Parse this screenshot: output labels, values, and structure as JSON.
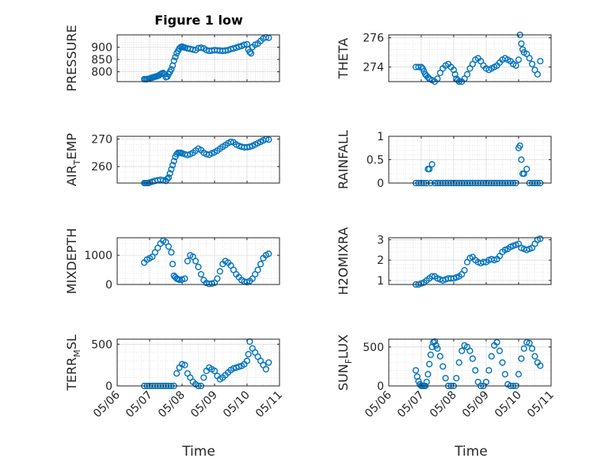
{
  "figure": {
    "title": "Figure 1 low",
    "xlabel": "Time",
    "x_tick_labels": [
      "05/06",
      "05/07",
      "05/08",
      "05/09",
      "05/10",
      "05/11"
    ],
    "marker_color": "#0072BD"
  },
  "chart_data": [
    {
      "type": "scatter",
      "ylabel": "PRESSURE",
      "ylabel_sub": "",
      "ylim": [
        760,
        950
      ],
      "yticks": [
        800,
        850,
        900
      ],
      "grid": true,
      "x": [
        "05/06 20:00",
        "05/06 21:00",
        "05/06 22:00",
        "05/06 23:00",
        "05/07 00:00",
        "05/07 01:00",
        "05/07 02:00",
        "05/07 03:00",
        "05/07 04:00",
        "05/07 05:00",
        "05/07 06:00",
        "05/07 07:00",
        "05/07 08:00",
        "05/07 09:00",
        "05/07 10:00",
        "05/07 11:00",
        "05/07 12:00",
        "05/07 13:00",
        "05/07 14:00",
        "05/07 15:00",
        "05/07 16:00",
        "05/07 17:00",
        "05/07 18:00",
        "05/07 19:00",
        "05/07 20:00",
        "05/07 21:00",
        "05/07 22:00",
        "05/07 23:00",
        "05/08 00:00",
        "05/08 01:00",
        "05/08 02:00",
        "05/08 04:00",
        "05/08 06:00",
        "05/08 08:00",
        "05/08 10:00",
        "05/08 12:00",
        "05/08 14:00",
        "05/08 16:00",
        "05/08 18:00",
        "05/08 20:00",
        "05/08 22:00",
        "05/09 00:00",
        "05/09 02:00",
        "05/09 04:00",
        "05/09 06:00",
        "05/09 08:00",
        "05/09 10:00",
        "05/09 12:00",
        "05/09 14:00",
        "05/09 16:00",
        "05/09 18:00",
        "05/09 20:00",
        "05/09 22:00",
        "05/10 00:00",
        "05/10 01:00",
        "05/10 02:00",
        "05/10 03:00",
        "05/10 04:00",
        "05/10 06:00",
        "05/10 08:00",
        "05/10 10:00",
        "05/10 12:00",
        "05/10 14:00",
        "05/10 16:00"
      ],
      "values": [
        770,
        770,
        770,
        771,
        772,
        775,
        776,
        778,
        780,
        781,
        783,
        786,
        790,
        793,
        795,
        790,
        778,
        780,
        790,
        800,
        810,
        825,
        845,
        860,
        875,
        885,
        895,
        900,
        902,
        900,
        898,
        895,
        893,
        890,
        888,
        896,
        898,
        895,
        888,
        885,
        886,
        888,
        887,
        886,
        885,
        886,
        888,
        892,
        895,
        898,
        902,
        905,
        910,
        912,
        890,
        880,
        875,
        900,
        910,
        915,
        925,
        935,
        940,
        938
      ]
    },
    {
      "type": "scatter",
      "ylabel": "THETA",
      "ylabel_sub": "",
      "ylim": [
        273,
        276.2
      ],
      "yticks": [
        274,
        276
      ],
      "grid": true,
      "x": [
        "05/06 20:00",
        "05/06 22:00",
        "05/07 00:00",
        "05/07 01:00",
        "05/07 02:00",
        "05/07 03:00",
        "05/07 04:00",
        "05/07 05:00",
        "05/07 06:00",
        "05/07 08:00",
        "05/07 10:00",
        "05/07 12:00",
        "05/07 14:00",
        "05/07 16:00",
        "05/07 18:00",
        "05/07 20:00",
        "05/07 22:00",
        "05/08 00:00",
        "05/08 01:00",
        "05/08 02:00",
        "05/08 03:00",
        "05/08 04:00",
        "05/08 06:00",
        "05/08 08:00",
        "05/08 10:00",
        "05/08 12:00",
        "05/08 14:00",
        "05/08 16:00",
        "05/08 18:00",
        "05/08 20:00",
        "05/08 22:00",
        "05/09 00:00",
        "05/09 02:00",
        "05/09 04:00",
        "05/09 06:00",
        "05/09 08:00",
        "05/09 10:00",
        "05/09 12:00",
        "05/09 14:00",
        "05/09 16:00",
        "05/09 18:00",
        "05/09 20:00",
        "05/09 22:00",
        "05/10 00:00",
        "05/10 01:00",
        "05/10 02:00",
        "05/10 03:00",
        "05/10 04:00",
        "05/10 06:00",
        "05/10 08:00",
        "05/10 10:00",
        "05/10 12:00",
        "05/10 14:00",
        "05/10 16:00"
      ],
      "values": [
        274,
        274,
        274,
        273.9,
        273.7,
        273.5,
        273.4,
        273.3,
        273.2,
        273.1,
        273.0,
        273.2,
        273.6,
        273.9,
        274.1,
        274.2,
        274.0,
        273.8,
        273.5,
        273.2,
        273.1,
        273.0,
        273.0,
        273.2,
        273.5,
        273.9,
        274.2,
        274.5,
        274.6,
        274.4,
        274.1,
        273.9,
        273.8,
        273.9,
        274.0,
        274.1,
        274.3,
        274.5,
        274.6,
        274.5,
        274.4,
        274.2,
        274.1,
        274.5,
        276.2,
        275.6,
        275.2,
        275.0,
        274.9,
        274.6,
        274.2,
        273.8,
        273.5,
        274.4
      ]
    },
    {
      "type": "scatter",
      "ylabel": "AIR",
      "ylabel_sub": "T",
      "ylabel_after": "EMP",
      "ylim": [
        254,
        271
      ],
      "yticks": [
        260,
        270
      ],
      "grid": true,
      "x": [
        "05/06 20:00",
        "05/06 21:00",
        "05/06 22:00",
        "05/06 23:00",
        "05/07 00:00",
        "05/07 02:00",
        "05/07 04:00",
        "05/07 06:00",
        "05/07 08:00",
        "05/07 10:00",
        "05/07 12:00",
        "05/07 13:00",
        "05/07 14:00",
        "05/07 15:00",
        "05/07 16:00",
        "05/07 17:00",
        "05/07 18:00",
        "05/07 19:00",
        "05/07 20:00",
        "05/07 21:00",
        "05/07 22:00",
        "05/07 23:00",
        "05/08 00:00",
        "05/08 02:00",
        "05/08 04:00",
        "05/08 06:00",
        "05/08 08:00",
        "05/08 10:00",
        "05/08 12:00",
        "05/08 14:00",
        "05/08 16:00",
        "05/08 18:00",
        "05/08 20:00",
        "05/08 22:00",
        "05/09 00:00",
        "05/09 02:00",
        "05/09 04:00",
        "05/09 06:00",
        "05/09 08:00",
        "05/09 10:00",
        "05/09 12:00",
        "05/09 14:00",
        "05/09 16:00",
        "05/09 18:00",
        "05/09 20:00",
        "05/09 22:00",
        "05/10 00:00",
        "05/10 02:00",
        "05/10 04:00",
        "05/10 06:00",
        "05/10 08:00",
        "05/10 10:00",
        "05/10 12:00",
        "05/10 14:00",
        "05/10 16:00"
      ],
      "values": [
        254,
        254,
        254,
        254,
        254.2,
        254.5,
        254.8,
        255.0,
        255.2,
        255.0,
        254.8,
        255.5,
        256,
        257.5,
        259,
        260.5,
        262,
        263.5,
        264.5,
        265,
        265,
        265,
        264.8,
        264.5,
        264.2,
        264.5,
        265,
        265.8,
        266.5,
        266,
        265,
        264.5,
        264.3,
        264.8,
        265.2,
        265.8,
        266.5,
        267.2,
        267.8,
        268.5,
        269,
        268.8,
        268,
        267.5,
        267.2,
        267.0,
        267.0,
        267.2,
        267.5,
        268,
        268.5,
        269,
        269.5,
        270,
        269.8
      ]
    },
    {
      "type": "scatter",
      "ylabel": "RAINFALL",
      "ylabel_sub": "",
      "ylim": [
        0,
        1
      ],
      "yticks": [
        0,
        0.5,
        1
      ],
      "grid": true,
      "x": [
        "05/06 20:00",
        "05/06 22:00",
        "05/07 00:00",
        "05/07 02:00",
        "05/07 04:00",
        "05/07 05:00",
        "05/07 06:00",
        "05/07 07:00",
        "05/07 08:00",
        "05/07 10:00",
        "05/07 12:00",
        "05/07 14:00",
        "05/07 16:00",
        "05/07 18:00",
        "05/07 20:00",
        "05/07 22:00",
        "05/08 00:00",
        "05/08 02:00",
        "05/08 04:00",
        "05/08 06:00",
        "05/08 08:00",
        "05/08 10:00",
        "05/08 12:00",
        "05/08 14:00",
        "05/08 16:00",
        "05/08 18:00",
        "05/08 20:00",
        "05/08 22:00",
        "05/09 00:00",
        "05/09 02:00",
        "05/09 04:00",
        "05/09 06:00",
        "05/09 08:00",
        "05/09 10:00",
        "05/09 12:00",
        "05/09 14:00",
        "05/09 16:00",
        "05/09 18:00",
        "05/09 20:00",
        "05/09 22:00",
        "05/10 00:00",
        "05/10 01:00",
        "05/10 02:00",
        "05/10 03:00",
        "05/10 04:00",
        "05/10 06:00",
        "05/10 08:00",
        "05/10 10:00",
        "05/10 12:00",
        "05/10 14:00",
        "05/10 16:00"
      ],
      "values": [
        0,
        0,
        0,
        0,
        0,
        0.3,
        0.3,
        0,
        0.4,
        0,
        0,
        0,
        0,
        0,
        0,
        0,
        0,
        0,
        0,
        0,
        0,
        0,
        0,
        0,
        0,
        0,
        0,
        0,
        0,
        0,
        0,
        0,
        0,
        0,
        0,
        0,
        0,
        0,
        0,
        0,
        0.75,
        0.8,
        0.5,
        0.2,
        0.2,
        0.3,
        0,
        0,
        0,
        0,
        0
      ]
    },
    {
      "type": "scatter",
      "ylabel": "MIXDEPTH",
      "ylabel_sub": "",
      "ylim": [
        0,
        1600
      ],
      "yticks": [
        0,
        1000
      ],
      "grid": true,
      "x": [
        "05/06 20:00",
        "05/06 22:00",
        "05/07 00:00",
        "05/07 02:00",
        "05/07 04:00",
        "05/07 06:00",
        "05/07 08:00",
        "05/07 10:00",
        "05/07 12:00",
        "05/07 14:00",
        "05/07 16:00",
        "05/07 17:00",
        "05/07 18:00",
        "05/07 19:00",
        "05/07 20:00",
        "05/07 21:00",
        "05/07 22:00",
        "05/08 00:00",
        "05/08 02:00",
        "05/08 04:00",
        "05/08 06:00",
        "05/08 08:00",
        "05/08 10:00",
        "05/08 12:00",
        "05/08 14:00",
        "05/08 16:00",
        "05/08 18:00",
        "05/08 20:00",
        "05/08 22:00",
        "05/09 00:00",
        "05/09 02:00",
        "05/09 04:00",
        "05/09 06:00",
        "05/09 08:00",
        "05/09 10:00",
        "05/09 12:00",
        "05/09 14:00",
        "05/09 16:00",
        "05/09 18:00",
        "05/09 20:00",
        "05/09 22:00",
        "05/10 00:00",
        "05/10 02:00",
        "05/10 04:00",
        "05/10 06:00",
        "05/10 08:00",
        "05/10 10:00",
        "05/10 12:00",
        "05/10 14:00",
        "05/10 16:00"
      ],
      "values": [
        750,
        850,
        900,
        950,
        1100,
        1250,
        1400,
        1500,
        1450,
        1300,
        1100,
        700,
        300,
        250,
        200,
        180,
        160,
        170,
        200,
        800,
        1000,
        950,
        800,
        600,
        350,
        150,
        50,
        20,
        30,
        60,
        200,
        450,
        700,
        800,
        750,
        650,
        500,
        350,
        250,
        150,
        100,
        80,
        120,
        200,
        350,
        500,
        700,
        900,
        1000,
        1050
      ]
    },
    {
      "type": "scatter",
      "ylabel": "H2OMIXRA",
      "ylabel_sub": "",
      "ylim": [
        0.8,
        3.1
      ],
      "yticks": [
        1,
        2,
        3
      ],
      "grid": true,
      "x": [
        "05/06 20:00",
        "05/06 22:00",
        "05/07 00:00",
        "05/07 02:00",
        "05/07 04:00",
        "05/07 06:00",
        "05/07 08:00",
        "05/07 10:00",
        "05/07 12:00",
        "05/07 14:00",
        "05/07 16:00",
        "05/07 18:00",
        "05/07 20:00",
        "05/07 22:00",
        "05/08 00:00",
        "05/08 02:00",
        "05/08 04:00",
        "05/08 06:00",
        "05/08 08:00",
        "05/08 10:00",
        "05/08 12:00",
        "05/08 14:00",
        "05/08 16:00",
        "05/08 18:00",
        "05/08 20:00",
        "05/08 22:00",
        "05/09 00:00",
        "05/09 02:00",
        "05/09 04:00",
        "05/09 06:00",
        "05/09 08:00",
        "05/09 10:00",
        "05/09 12:00",
        "05/09 14:00",
        "05/09 16:00",
        "05/09 18:00",
        "05/09 20:00",
        "05/09 22:00",
        "05/10 00:00",
        "05/10 02:00",
        "05/10 04:00",
        "05/10 06:00",
        "05/10 08:00",
        "05/10 10:00",
        "05/10 12:00",
        "05/10 14:00",
        "05/10 16:00"
      ],
      "values": [
        0.8,
        0.8,
        0.85,
        0.9,
        1.0,
        1.1,
        1.2,
        1.2,
        1.1,
        1.05,
        1.0,
        1.05,
        1.1,
        1.1,
        1.1,
        1.15,
        1.2,
        1.3,
        1.5,
        1.9,
        2.1,
        2.15,
        2.0,
        1.9,
        1.85,
        1.9,
        1.9,
        2.0,
        2.05,
        2.0,
        2.05,
        2.2,
        2.4,
        2.5,
        2.55,
        2.65,
        2.7,
        2.75,
        2.8,
        2.6,
        2.55,
        2.5,
        2.55,
        2.6,
        2.8,
        3.0,
        3.05
      ]
    },
    {
      "type": "scatter",
      "ylabel": "TERR",
      "ylabel_sub": "M",
      "ylabel_after": "SL",
      "ylim": [
        0,
        560
      ],
      "yticks": [
        0,
        500
      ],
      "grid": true,
      "x": [
        "05/06 20:00",
        "05/06 22:00",
        "05/07 00:00",
        "05/07 02:00",
        "05/07 04:00",
        "05/07 06:00",
        "05/07 08:00",
        "05/07 10:00",
        "05/07 12:00",
        "05/07 14:00",
        "05/07 16:00",
        "05/07 18:00",
        "05/07 20:00",
        "05/07 22:00",
        "05/08 00:00",
        "05/08 02:00",
        "05/08 04:00",
        "05/08 06:00",
        "05/08 08:00",
        "05/08 10:00",
        "05/08 12:00",
        "05/08 14:00",
        "05/08 16:00",
        "05/08 18:00",
        "05/08 20:00",
        "05/08 22:00",
        "05/09 00:00",
        "05/09 02:00",
        "05/09 04:00",
        "05/09 06:00",
        "05/09 08:00",
        "05/09 10:00",
        "05/09 12:00",
        "05/09 14:00",
        "05/09 16:00",
        "05/09 18:00",
        "05/09 20:00",
        "05/09 22:00",
        "05/10 00:00",
        "05/10 01:00",
        "05/10 02:00",
        "05/10 04:00",
        "05/10 06:00",
        "05/10 08:00",
        "05/10 10:00",
        "05/10 12:00",
        "05/10 14:00",
        "05/10 16:00"
      ],
      "values": [
        0,
        0,
        0,
        0,
        0,
        0,
        0,
        0,
        0,
        0,
        0,
        0,
        150,
        220,
        260,
        250,
        150,
        100,
        50,
        20,
        0,
        0,
        100,
        180,
        220,
        200,
        180,
        120,
        80,
        100,
        130,
        160,
        190,
        210,
        220,
        230,
        240,
        260,
        300,
        380,
        530,
        450,
        400,
        350,
        300,
        250,
        200,
        280
      ]
    },
    {
      "type": "scatter",
      "ylabel": "SUN",
      "ylabel_sub": "F",
      "ylabel_after": "LUX",
      "ylim": [
        0,
        600
      ],
      "yticks": [
        0,
        500
      ],
      "grid": true,
      "x": [
        "05/06 20:00",
        "05/06 21:00",
        "05/06 22:00",
        "05/06 23:00",
        "05/07 00:00",
        "05/07 01:00",
        "05/07 02:00",
        "05/07 03:00",
        "05/07 04:00",
        "05/07 05:00",
        "05/07 06:00",
        "05/07 07:00",
        "05/07 08:00",
        "05/07 09:00",
        "05/07 10:00",
        "05/07 11:00",
        "05/07 12:00",
        "05/07 14:00",
        "05/07 16:00",
        "05/07 18:00",
        "05/07 20:00",
        "05/07 22:00",
        "05/08 00:00",
        "05/08 02:00",
        "05/08 04:00",
        "05/08 06:00",
        "05/08 08:00",
        "05/08 10:00",
        "05/08 12:00",
        "05/08 14:00",
        "05/08 16:00",
        "05/08 18:00",
        "05/08 20:00",
        "05/08 22:00",
        "05/09 00:00",
        "05/09 02:00",
        "05/09 04:00",
        "05/09 06:00",
        "05/09 08:00",
        "05/09 10:00",
        "05/09 12:00",
        "05/09 14:00",
        "05/09 16:00",
        "05/09 18:00",
        "05/09 20:00",
        "05/09 22:00",
        "05/10 00:00",
        "05/10 02:00",
        "05/10 04:00",
        "05/10 06:00",
        "05/10 08:00",
        "05/10 10:00",
        "05/10 12:00",
        "05/10 14:00",
        "05/10 16:00"
      ],
      "values": [
        200,
        120,
        60,
        20,
        0,
        0,
        0,
        0,
        50,
        150,
        280,
        400,
        500,
        560,
        570,
        520,
        480,
        380,
        250,
        100,
        0,
        0,
        0,
        100,
        300,
        450,
        520,
        500,
        450,
        350,
        200,
        50,
        0,
        0,
        50,
        200,
        380,
        520,
        560,
        450,
        300,
        150,
        20,
        0,
        0,
        0,
        150,
        350,
        480,
        560,
        550,
        480,
        380,
        300,
        260
      ]
    }
  ]
}
